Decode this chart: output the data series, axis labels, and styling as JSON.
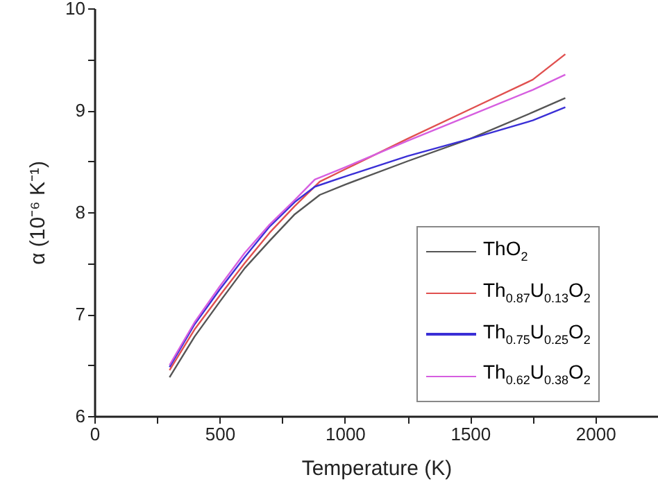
{
  "chart_data": {
    "type": "line",
    "xlabel": "Temperature (K)",
    "ylabel": "α (10⁻⁶ K⁻¹)",
    "xlim": [
      0,
      2250
    ],
    "ylim": [
      6,
      10
    ],
    "xticks": [
      0,
      {
        "value": 250,
        "label": null
      },
      500,
      {
        "value": 750,
        "label": null
      },
      1000,
      {
        "value": 1250,
        "label": null
      },
      1500,
      {
        "value": 1750,
        "label": null
      },
      2000,
      {
        "value": 2250,
        "label": null
      }
    ],
    "yticks": [
      6,
      {
        "value": 6.5,
        "label": null
      },
      7,
      {
        "value": 7.5,
        "label": null
      },
      8,
      {
        "value": 8.5,
        "label": null
      },
      9,
      {
        "value": 9.5,
        "label": null
      },
      10
    ],
    "grid": false,
    "legend": "right",
    "series": [
      {
        "name": "ThO$_{2}$",
        "color": "#555555",
        "x": [
          300,
          400,
          500,
          600,
          700,
          800,
          900,
          1000,
          1250,
          1500,
          1750,
          1880
        ],
        "values": [
          6.38,
          6.78,
          7.12,
          7.45,
          7.72,
          7.98,
          8.17,
          8.27,
          8.5,
          8.72,
          8.98,
          9.12
        ]
      },
      {
        "name": "Th$_{0.87}$U$_{0.13}$O$_{2}$",
        "color": "#e0504f",
        "x": [
          300,
          400,
          500,
          600,
          700,
          800,
          900,
          1000,
          1250,
          1500,
          1750,
          1880
        ],
        "values": [
          6.45,
          6.85,
          7.18,
          7.5,
          7.8,
          8.06,
          8.3,
          8.42,
          8.72,
          9.01,
          9.3,
          9.55
        ]
      },
      {
        "name": "Th$_{0.75}$U$_{0.25}$O$_{2}$",
        "color": "#3a2fd6",
        "x": [
          300,
          400,
          500,
          600,
          700,
          800,
          880,
          1000,
          1250,
          1500,
          1750,
          1880
        ],
        "values": [
          6.48,
          6.9,
          7.24,
          7.56,
          7.86,
          8.1,
          8.25,
          8.35,
          8.55,
          8.72,
          8.9,
          9.03
        ]
      },
      {
        "name": "Th$_{0.62}$U$_{0.38}$O$_{2}$",
        "color": "#d65ee0",
        "x": [
          300,
          400,
          500,
          600,
          700,
          800,
          880,
          1000,
          1250,
          1500,
          1750,
          1880
        ],
        "values": [
          6.5,
          6.92,
          7.27,
          7.6,
          7.88,
          8.12,
          8.32,
          8.44,
          8.7,
          8.95,
          9.2,
          9.35
        ]
      }
    ]
  }
}
